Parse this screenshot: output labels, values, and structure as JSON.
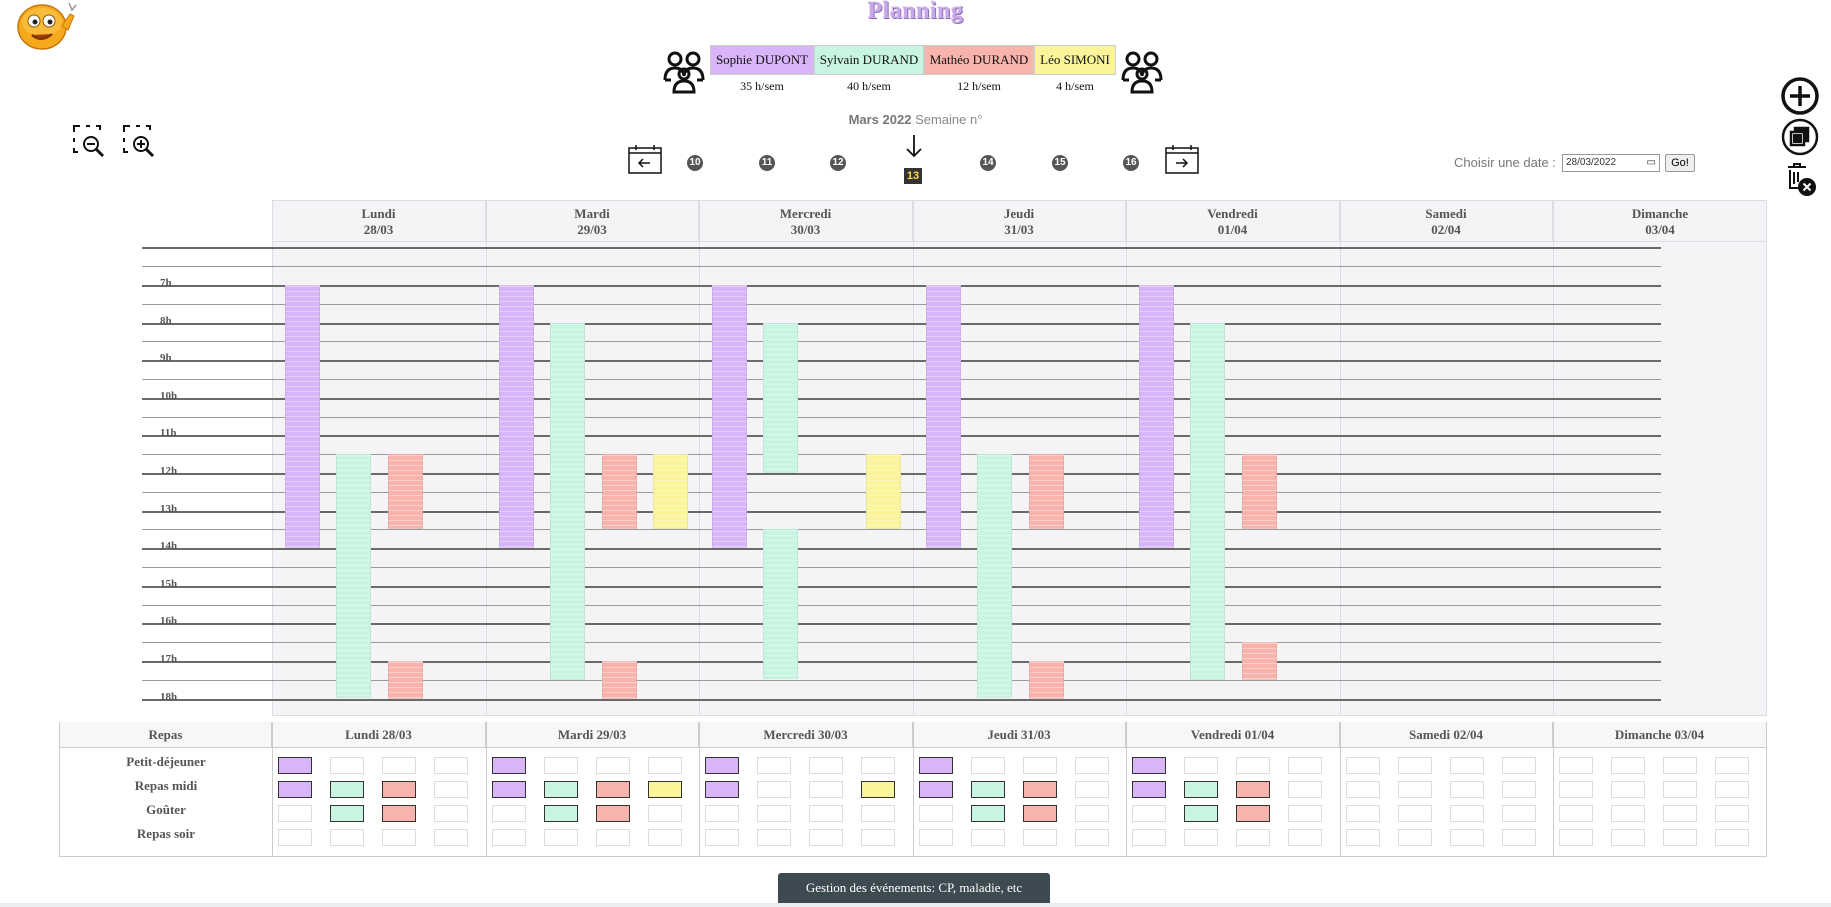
{
  "page": {
    "title": "Planning"
  },
  "employees": [
    {
      "name": "Sophie DUPONT",
      "hours": "35 h/sem",
      "color": "#d8b4f8"
    },
    {
      "name": "Sylvain DURAND",
      "hours": "40 h/sem",
      "color": "#c8f5e1"
    },
    {
      "name": "Mathéo DURAND",
      "hours": "12 h/sem",
      "color": "#f9b3ad"
    },
    {
      "name": "Léo SIMONI",
      "hours": "4 h/sem",
      "color": "#faf59a"
    }
  ],
  "week_nav": {
    "month": "Mars 2022",
    "week_label": "Semaine n°",
    "weeks": [
      "10",
      "11",
      "12",
      "13",
      "14",
      "15",
      "16"
    ],
    "current_week": "13",
    "prev_icon": "calendar-prev-icon",
    "next_icon": "calendar-next-icon"
  },
  "date_picker": {
    "label": "Choisir une date :",
    "value": "28/03/2022",
    "go_label": "Go!"
  },
  "days": [
    {
      "name": "Lundi",
      "date": "28/03",
      "full": "Lundi 28/03"
    },
    {
      "name": "Mardi",
      "date": "29/03",
      "full": "Mardi 29/03"
    },
    {
      "name": "Mercredi",
      "date": "30/03",
      "full": "Mercredi 30/03"
    },
    {
      "name": "Jeudi",
      "date": "31/03",
      "full": "Jeudi 31/03"
    },
    {
      "name": "Vendredi",
      "date": "01/04",
      "full": "Vendredi 01/04"
    },
    {
      "name": "Samedi",
      "date": "02/04",
      "full": "Samedi 02/04"
    },
    {
      "name": "Dimanche",
      "date": "03/04",
      "full": "Dimanche 03/04"
    }
  ],
  "hours": [
    "7h",
    "8h",
    "9h",
    "10h",
    "11h",
    "12h",
    "13h",
    "14h",
    "15h",
    "16h",
    "17h",
    "18h"
  ],
  "shifts": [
    {
      "day": 0,
      "employee": 0,
      "start": 7,
      "end": 14
    },
    {
      "day": 0,
      "employee": 1,
      "start": 11.5,
      "end": 18
    },
    {
      "day": 0,
      "employee": 2,
      "start": 11.5,
      "end": 13.5
    },
    {
      "day": 0,
      "employee": 2,
      "start": 17,
      "end": 18
    },
    {
      "day": 1,
      "employee": 0,
      "start": 7,
      "end": 14
    },
    {
      "day": 1,
      "employee": 1,
      "start": 8,
      "end": 17.5
    },
    {
      "day": 1,
      "employee": 2,
      "start": 11.5,
      "end": 13.5
    },
    {
      "day": 1,
      "employee": 2,
      "start": 17,
      "end": 18
    },
    {
      "day": 1,
      "employee": 3,
      "start": 11.5,
      "end": 13.5
    },
    {
      "day": 2,
      "employee": 0,
      "start": 7,
      "end": 14
    },
    {
      "day": 2,
      "employee": 1,
      "start": 8,
      "end": 12
    },
    {
      "day": 2,
      "employee": 1,
      "start": 13.5,
      "end": 17.5
    },
    {
      "day": 2,
      "employee": 3,
      "start": 11.5,
      "end": 13.5
    },
    {
      "day": 3,
      "employee": 0,
      "start": 7,
      "end": 14
    },
    {
      "day": 3,
      "employee": 1,
      "start": 11.5,
      "end": 18
    },
    {
      "day": 3,
      "employee": 2,
      "start": 11.5,
      "end": 13.5
    },
    {
      "day": 3,
      "employee": 2,
      "start": 17,
      "end": 18
    },
    {
      "day": 4,
      "employee": 0,
      "start": 7,
      "end": 14
    },
    {
      "day": 4,
      "employee": 1,
      "start": 8,
      "end": 17.5
    },
    {
      "day": 4,
      "employee": 2,
      "start": 11.5,
      "end": 13.5
    },
    {
      "day": 4,
      "employee": 2,
      "start": 16.5,
      "end": 17.5
    }
  ],
  "meals": {
    "header": "Repas",
    "rows": [
      "Petit-déjeuner",
      "Repas midi",
      "Goûter",
      "Repas soir"
    ],
    "selected": [
      [
        [
          true,
          false,
          false,
          false
        ],
        [
          true,
          true,
          true,
          false
        ],
        [
          false,
          true,
          true,
          false
        ],
        [
          false,
          false,
          false,
          false
        ]
      ],
      [
        [
          true,
          false,
          false,
          false
        ],
        [
          true,
          true,
          true,
          true
        ],
        [
          false,
          true,
          true,
          false
        ],
        [
          false,
          false,
          false,
          false
        ]
      ],
      [
        [
          true,
          false,
          false,
          false
        ],
        [
          true,
          false,
          false,
          true
        ],
        [
          false,
          false,
          false,
          false
        ],
        [
          false,
          false,
          false,
          false
        ]
      ],
      [
        [
          true,
          false,
          false,
          false
        ],
        [
          true,
          true,
          true,
          false
        ],
        [
          false,
          true,
          true,
          false
        ],
        [
          false,
          false,
          false,
          false
        ]
      ],
      [
        [
          true,
          false,
          false,
          false
        ],
        [
          true,
          true,
          true,
          false
        ],
        [
          false,
          true,
          true,
          false
        ],
        [
          false,
          false,
          false,
          false
        ]
      ],
      [
        [
          false,
          false,
          false,
          false
        ],
        [
          false,
          false,
          false,
          false
        ],
        [
          false,
          false,
          false,
          false
        ],
        [
          false,
          false,
          false,
          false
        ]
      ],
      [
        [
          false,
          false,
          false,
          false
        ],
        [
          false,
          false,
          false,
          false
        ],
        [
          false,
          false,
          false,
          false
        ],
        [
          false,
          false,
          false,
          false
        ]
      ]
    ]
  },
  "bottom_button": "Gestion des événements: CP, maladie, etc",
  "icons": {
    "logo": "emoji-logo-icon",
    "people": "group-icon",
    "zoom_out": "zoom-out-icon",
    "zoom_in": "zoom-in-icon",
    "add": "add-circle-icon",
    "copy": "copy-icon",
    "delete": "delete-calendar-icon"
  }
}
